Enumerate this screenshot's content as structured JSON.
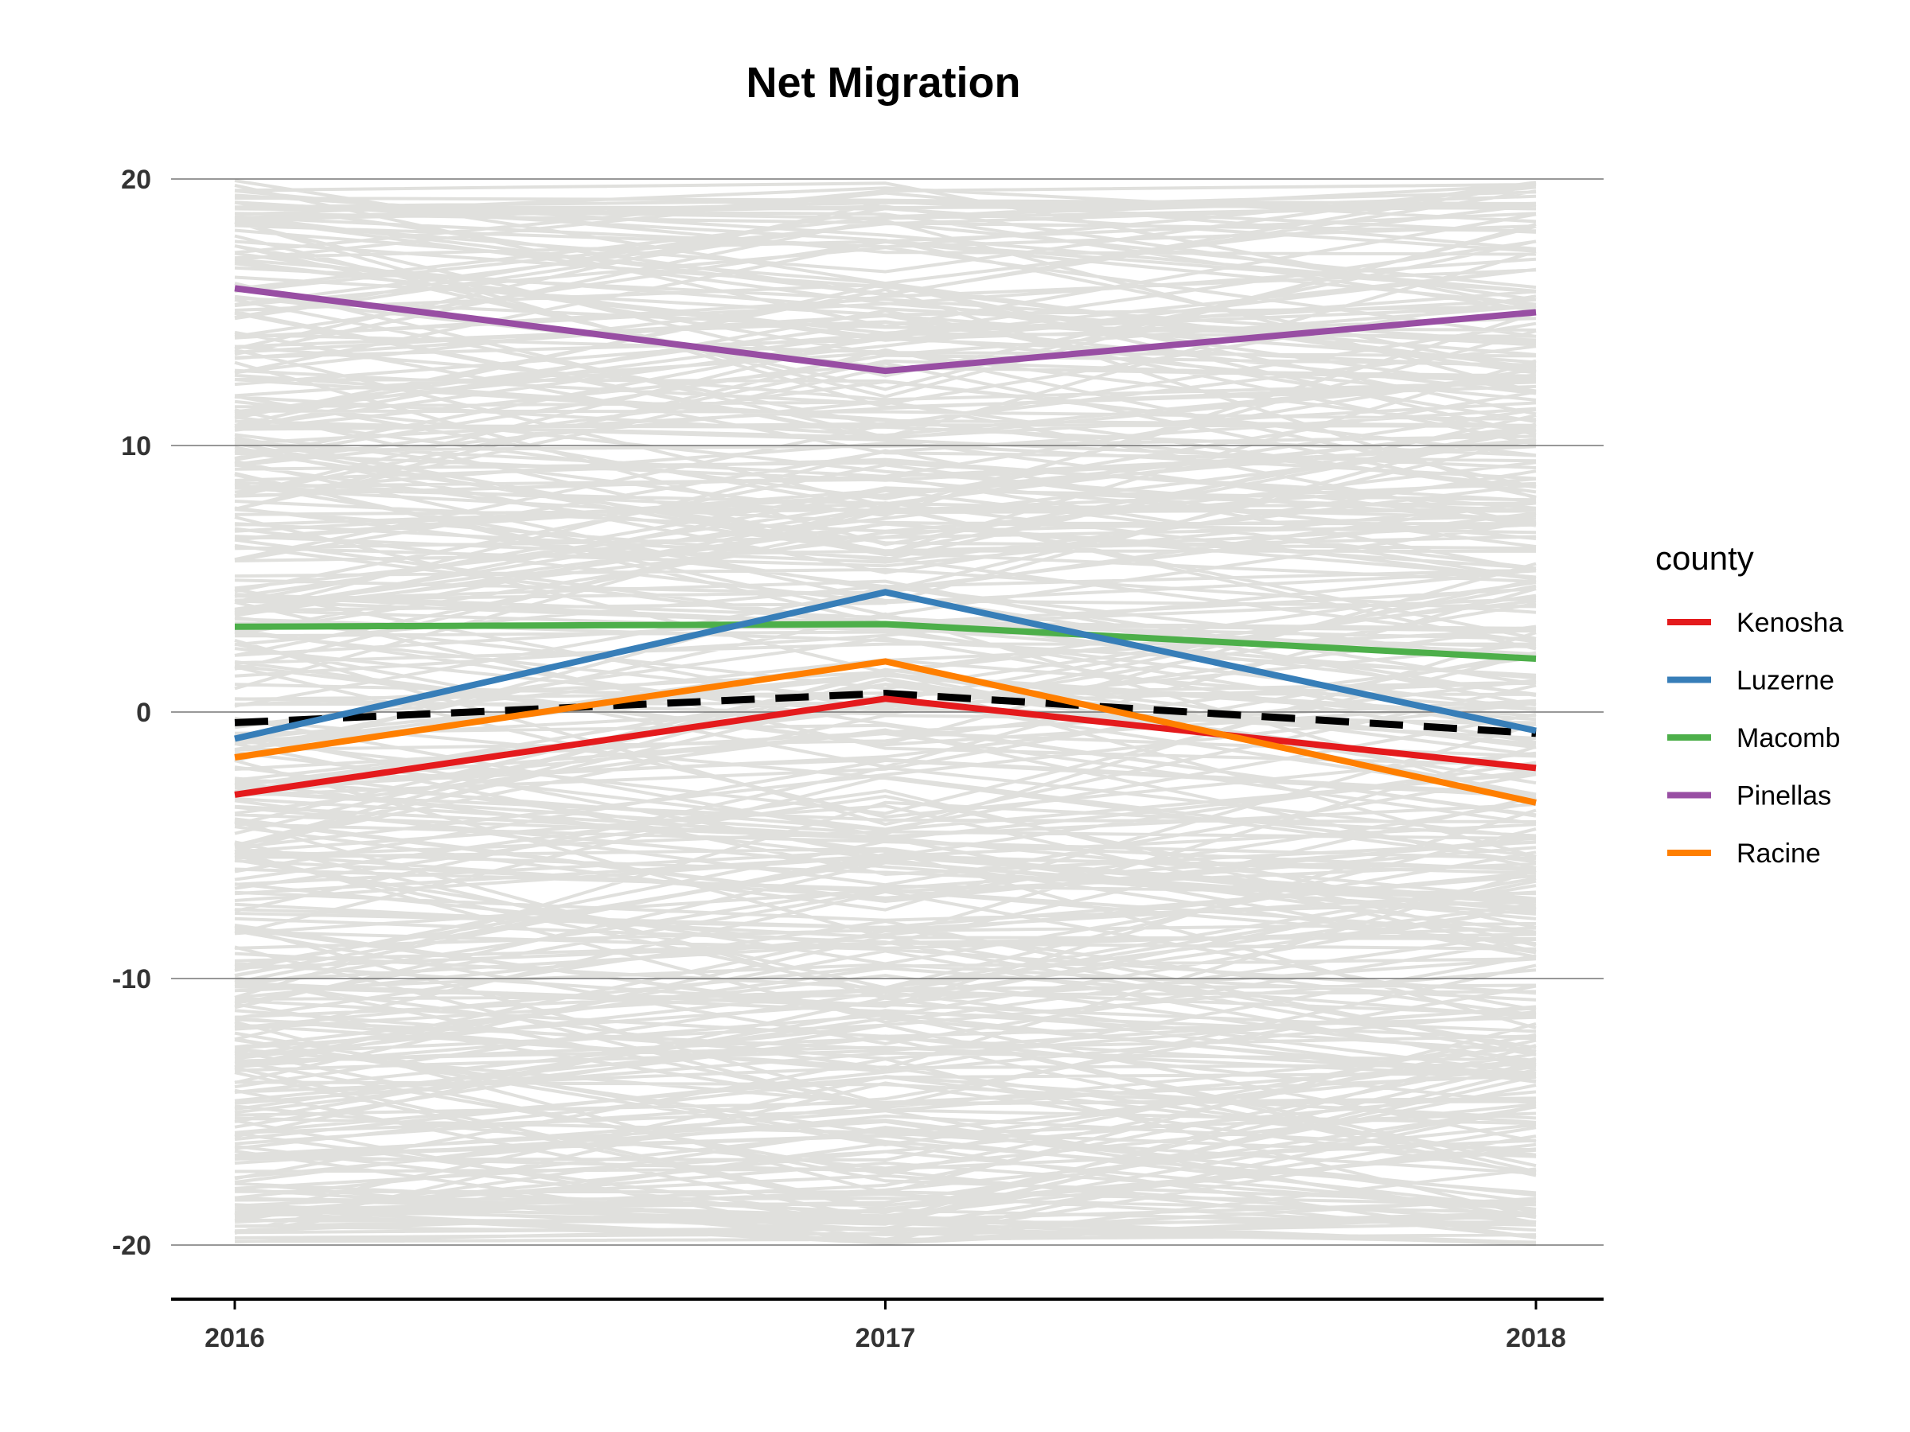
{
  "chart_data": {
    "type": "line",
    "title": "Net Migration",
    "xlabel": "",
    "ylabel": "",
    "x": [
      2016,
      2017,
      2018
    ],
    "x_tick_labels": [
      "2016",
      "2017",
      "2018"
    ],
    "y_ticks": [
      20,
      10,
      0,
      -10,
      -20
    ],
    "y_tick_labels": [
      "20",
      "10",
      "0",
      "-10",
      "-20"
    ],
    "ylim": [
      -22,
      20.5
    ],
    "grid": "horizontal major",
    "legend_title": "county",
    "legend_position": "right",
    "background_series": {
      "description_color": "#e0e0dd",
      "count": 400,
      "value_range": [
        -20,
        20
      ]
    },
    "series": [
      {
        "name": "Kenosha",
        "color": "#e41a1c",
        "values": [
          -3.1,
          0.5,
          -2.1
        ]
      },
      {
        "name": "Luzerne",
        "color": "#377eb8",
        "values": [
          -1.0,
          4.5,
          -0.7
        ]
      },
      {
        "name": "Macomb",
        "color": "#4daf4a",
        "values": [
          3.2,
          3.3,
          2.0
        ]
      },
      {
        "name": "Pinellas",
        "color": "#984ea3",
        "values": [
          15.9,
          12.8,
          15.0
        ]
      },
      {
        "name": "Racine",
        "color": "#ff7f00",
        "values": [
          -1.7,
          1.9,
          -3.4
        ]
      }
    ],
    "reference_line": {
      "style": "dashed",
      "color": "#000000",
      "values": [
        -0.4,
        0.7,
        -0.8
      ]
    }
  }
}
